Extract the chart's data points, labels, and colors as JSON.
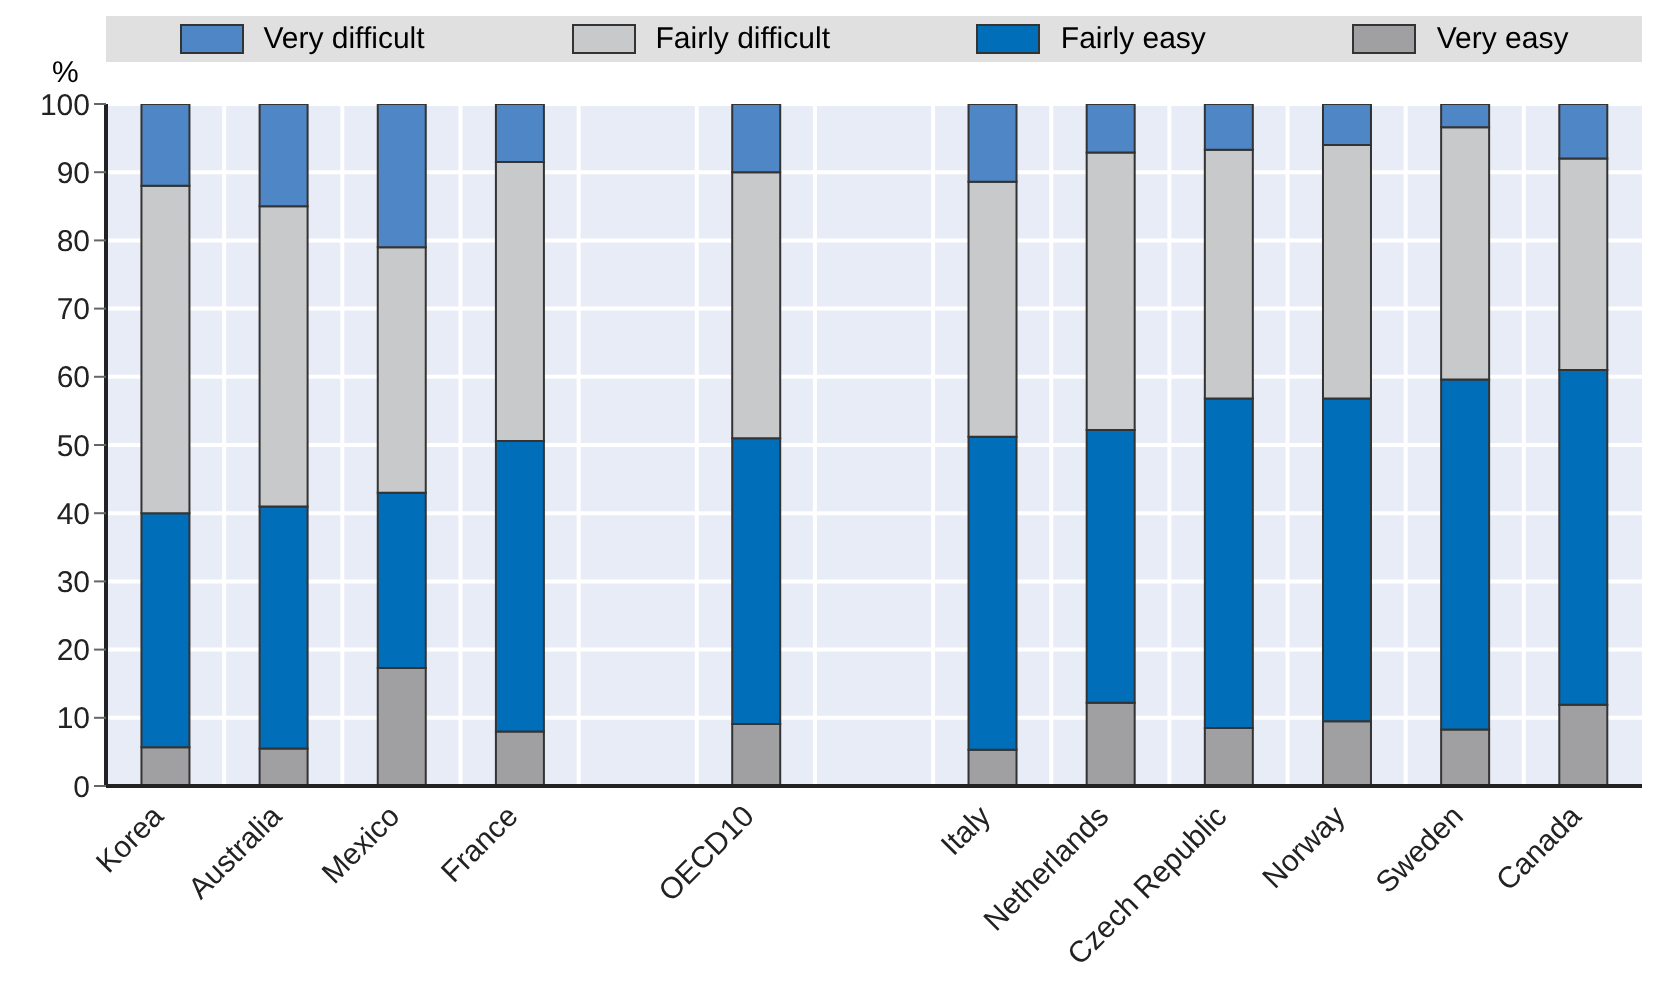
{
  "chart_data": {
    "type": "bar",
    "stacked": true,
    "ylabel": "%",
    "categories": [
      "Korea",
      "Australia",
      "Mexico",
      "France",
      null,
      "OECD10",
      null,
      "Italy",
      "Netherlands",
      "Czech Republic",
      "Norway",
      "Sweden",
      "Canada"
    ],
    "series": [
      {
        "name": "Very easy",
        "color": "#a0a0a2",
        "values": [
          5.7,
          5.5,
          17.3,
          8,
          null,
          9.1,
          null,
          5.3,
          12.2,
          8.5,
          9.5,
          8.3,
          11.9
        ]
      },
      {
        "name": "Fairly easy",
        "color": "#006eb8",
        "values": [
          34.3,
          35.5,
          25.7,
          42.6,
          null,
          41.9,
          null,
          45.9,
          40,
          48.3,
          47.3,
          51.3,
          49.1
        ]
      },
      {
        "name": "Fairly difficult",
        "color": "#c8c9cb",
        "values": [
          48,
          44,
          36,
          40.9,
          null,
          39,
          null,
          37.4,
          40.7,
          36.5,
          37.2,
          37,
          31
        ]
      },
      {
        "name": "Very difficult",
        "color": "#4e86c6",
        "values": [
          12,
          15,
          21,
          8.5,
          null,
          10,
          null,
          11.4,
          7.1,
          6.7,
          6,
          3.4,
          8
        ]
      }
    ],
    "ylim": [
      0,
      100
    ],
    "yticks": [
      0,
      10,
      20,
      30,
      40,
      50,
      60,
      70,
      80,
      90,
      100
    ],
    "grid": true,
    "legend": "top"
  }
}
